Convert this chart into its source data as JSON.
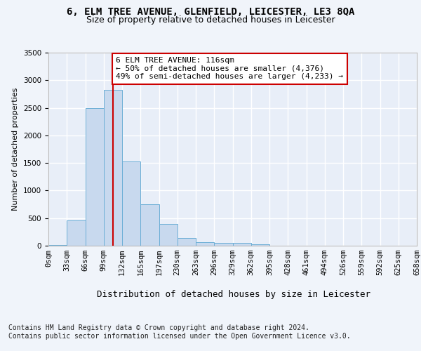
{
  "title": "6, ELM TREE AVENUE, GLENFIELD, LEICESTER, LE3 8QA",
  "subtitle": "Size of property relative to detached houses in Leicester",
  "xlabel": "Distribution of detached houses by size in Leicester",
  "ylabel": "Number of detached properties",
  "bar_color": "#c8d9ee",
  "bar_edge_color": "#6baed6",
  "background_color": "#e8eef8",
  "fig_background_color": "#f0f4fa",
  "grid_color": "#ffffff",
  "bin_width": 33,
  "bin_starts": [
    0,
    33,
    66,
    99,
    132,
    165,
    198,
    231,
    264,
    297,
    330,
    363,
    396,
    429,
    462,
    495,
    528,
    561,
    594,
    627
  ],
  "bar_heights": [
    18,
    460,
    2500,
    2820,
    1530,
    750,
    390,
    140,
    70,
    50,
    50,
    20,
    0,
    0,
    0,
    0,
    0,
    0,
    0,
    0
  ],
  "tick_labels": [
    "0sqm",
    "33sqm",
    "66sqm",
    "99sqm",
    "132sqm",
    "165sqm",
    "197sqm",
    "230sqm",
    "263sqm",
    "296sqm",
    "329sqm",
    "362sqm",
    "395sqm",
    "428sqm",
    "461sqm",
    "494sqm",
    "526sqm",
    "559sqm",
    "592sqm",
    "625sqm",
    "658sqm"
  ],
  "vline_x": 116,
  "vline_color": "#cc0000",
  "annotation_text": "6 ELM TREE AVENUE: 116sqm\n← 50% of detached houses are smaller (4,376)\n49% of semi-detached houses are larger (4,233) →",
  "annotation_box_color": "#ffffff",
  "annotation_border_color": "#cc0000",
  "ylim": [
    0,
    3500
  ],
  "yticks": [
    0,
    500,
    1000,
    1500,
    2000,
    2500,
    3000,
    3500
  ],
  "footer_text": "Contains HM Land Registry data © Crown copyright and database right 2024.\nContains public sector information licensed under the Open Government Licence v3.0.",
  "title_fontsize": 10,
  "subtitle_fontsize": 9,
  "axis_label_fontsize": 8,
  "tick_fontsize": 7.5,
  "annotation_fontsize": 8,
  "footer_fontsize": 7,
  "xlabel_fontsize": 9
}
